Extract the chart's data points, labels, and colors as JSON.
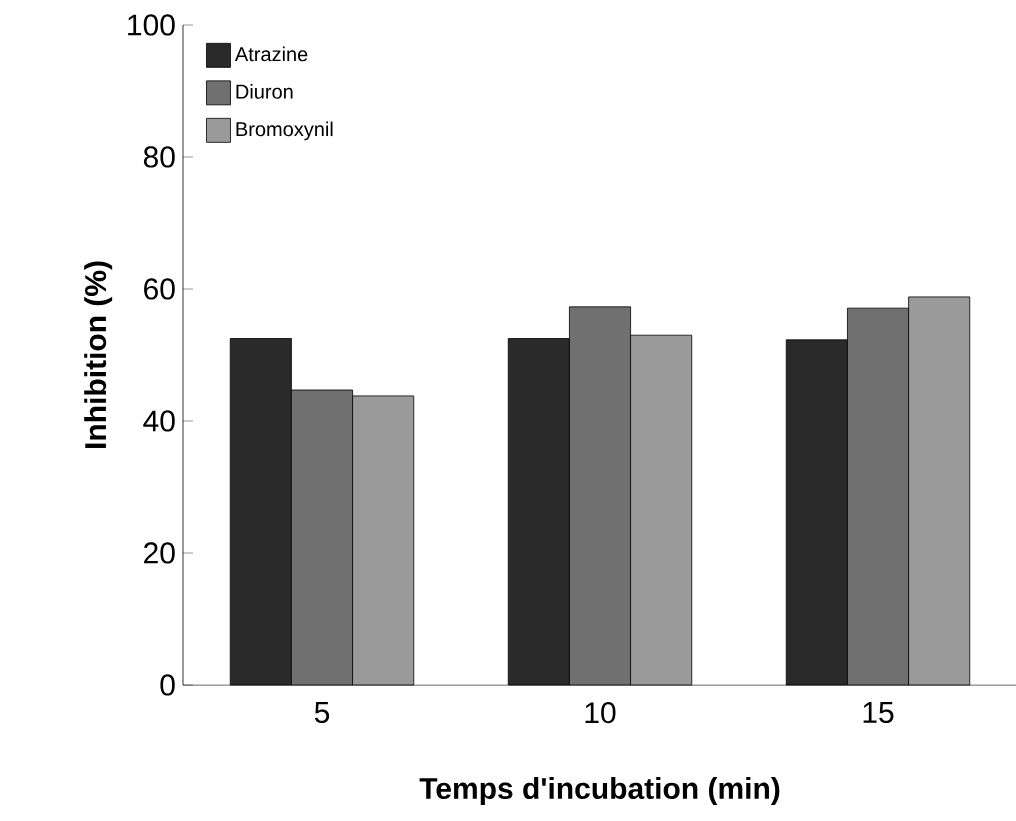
{
  "chart_data": {
    "type": "bar",
    "xlabel": "Temps d'incubation (min)",
    "ylabel": "Inhibition (%)",
    "categories": [
      "5",
      "10",
      "15"
    ],
    "series": [
      {
        "name": "Atrazine",
        "color": "#2a2a2a",
        "values": [
          52.5,
          52.5,
          52.3
        ]
      },
      {
        "name": "Diuron",
        "color": "#707070",
        "values": [
          44.7,
          57.3,
          57.1
        ]
      },
      {
        "name": "Bromoxynil",
        "color": "#9a9a9a",
        "values": [
          43.8,
          53.0,
          58.8
        ]
      }
    ],
    "ylim": [
      0,
      100
    ],
    "yticks": [
      0,
      20,
      40,
      60,
      80,
      100
    ],
    "grid": false,
    "legend": "top left"
  }
}
